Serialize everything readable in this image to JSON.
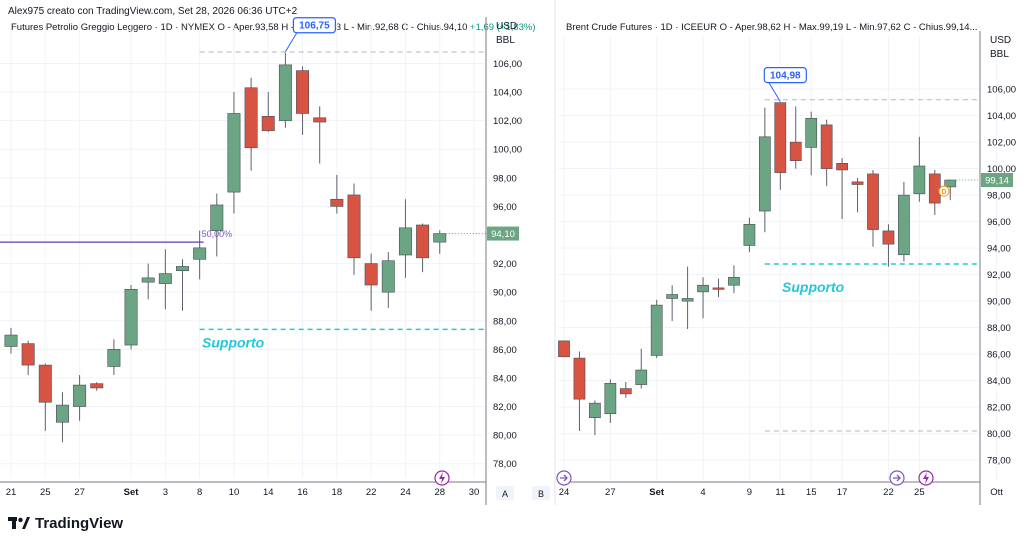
{
  "header": {
    "creator_text": "Alex975 creato con TradingView.com, Set 28, 2026 06:36 UTC+2"
  },
  "footer": {
    "brand": "TradingView",
    "logo_icon": "tradingview-logo-icon"
  },
  "colors": {
    "up": "#6ba583",
    "down": "#d75442",
    "callout": "#2962ff",
    "support": "#26c6da",
    "purple": "#7e57c2",
    "price_label_bg": "#6ba583"
  },
  "charts": [
    {
      "id": "wti",
      "title_prefix": "Futures Petrolio Greggio Leggero · 1D · NYMEX",
      "ohlc_text": "O - Aper.93,58  H - Max.94,33  L - Min.92,68  C - Chius.94,10",
      "change_text": "+1,69 (+1,83%)",
      "currency": "USD",
      "unit": "BBL",
      "y_ticks": [
        "78,00",
        "80,00",
        "82,00",
        "84,00",
        "86,00",
        "88,00",
        "90,00",
        "92,00",
        "94,00",
        "96,00",
        "98,00",
        "100,00",
        "102,00",
        "104,00",
        "106,00"
      ],
      "x_ticks": [
        {
          "label": "21",
          "i": 0
        },
        {
          "label": "25",
          "i": 2
        },
        {
          "label": "27",
          "i": 4
        },
        {
          "label": "Set",
          "i": 7
        },
        {
          "label": "3",
          "i": 9
        },
        {
          "label": "8",
          "i": 11
        },
        {
          "label": "10",
          "i": 13
        },
        {
          "label": "14",
          "i": 15
        },
        {
          "label": "16",
          "i": 17
        },
        {
          "label": "18",
          "i": 19
        },
        {
          "label": "22",
          "i": 21
        },
        {
          "label": "24",
          "i": 23
        },
        {
          "label": "28",
          "i": 25
        },
        {
          "label": "30",
          "i": 27
        }
      ],
      "scale_buttons": [
        "A",
        "B"
      ],
      "high_label": "106,75",
      "fib_label": "50,00%",
      "support_label": "Supporto",
      "last_price": "94,10",
      "chart_data": {
        "type": "candlestick",
        "ylim": [
          77,
          107.5
        ],
        "candles": [
          {
            "o": 86.2,
            "h": 87.5,
            "l": 85.7,
            "c": 87.0
          },
          {
            "o": 86.4,
            "h": 86.6,
            "l": 84.2,
            "c": 84.9
          },
          {
            "o": 84.9,
            "h": 85.0,
            "l": 80.3,
            "c": 82.3
          },
          {
            "o": 80.9,
            "h": 83.0,
            "l": 79.5,
            "c": 82.1
          },
          {
            "o": 82.0,
            "h": 84.2,
            "l": 81.0,
            "c": 83.5
          },
          {
            "o": 83.6,
            "h": 83.7,
            "l": 83.1,
            "c": 83.3
          },
          {
            "o": 84.8,
            "h": 86.7,
            "l": 84.2,
            "c": 86.0
          },
          {
            "o": 86.3,
            "h": 90.5,
            "l": 86.0,
            "c": 90.2
          },
          {
            "o": 90.7,
            "h": 92.0,
            "l": 89.5,
            "c": 91.0
          },
          {
            "o": 90.6,
            "h": 93.0,
            "l": 88.8,
            "c": 91.3
          },
          {
            "o": 91.5,
            "h": 92.3,
            "l": 88.7,
            "c": 91.8
          },
          {
            "o": 92.3,
            "h": 94.3,
            "l": 90.9,
            "c": 93.1
          },
          {
            "o": 94.3,
            "h": 96.9,
            "l": 92.5,
            "c": 96.1
          },
          {
            "o": 97.0,
            "h": 104.0,
            "l": 95.5,
            "c": 102.5
          },
          {
            "o": 104.3,
            "h": 105.0,
            "l": 98.5,
            "c": 100.1
          },
          {
            "o": 102.3,
            "h": 104.0,
            "l": 101.2,
            "c": 101.3
          },
          {
            "o": 102.0,
            "h": 106.75,
            "l": 101.5,
            "c": 105.9
          },
          {
            "o": 105.5,
            "h": 105.8,
            "l": 101.0,
            "c": 102.5
          },
          {
            "o": 102.2,
            "h": 103.0,
            "l": 99.0,
            "c": 101.9
          },
          {
            "o": 96.5,
            "h": 98.2,
            "l": 95.5,
            "c": 96.0
          },
          {
            "o": 96.8,
            "h": 97.6,
            "l": 91.2,
            "c": 92.4
          },
          {
            "o": 92.0,
            "h": 92.7,
            "l": 88.7,
            "c": 90.5
          },
          {
            "o": 90.0,
            "h": 92.8,
            "l": 88.9,
            "c": 92.2
          },
          {
            "o": 92.6,
            "h": 96.5,
            "l": 91.0,
            "c": 94.5
          },
          {
            "o": 94.7,
            "h": 94.8,
            "l": 91.4,
            "c": 92.4
          },
          {
            "o": 93.5,
            "h": 94.33,
            "l": 92.68,
            "c": 94.1
          }
        ],
        "support": 87.4,
        "resistance": 106.8,
        "fib_level": 93.5
      }
    },
    {
      "id": "brent",
      "title_prefix": "Brent Crude Futures · 1D · ICEEUR",
      "ohlc_text": "O - Aper.98,62  H - Max.99,19  L - Min.97,62  C - Chius.99,14...",
      "currency": "USD",
      "unit": "BBL",
      "y_ticks": [
        "78,00",
        "80,00",
        "82,00",
        "84,00",
        "86,00",
        "88,00",
        "90,00",
        "92,00",
        "94,00",
        "96,00",
        "98,00",
        "100,00",
        "102,00",
        "104,00",
        "106,00"
      ],
      "x_ticks": [
        {
          "label": "24",
          "i": 0
        },
        {
          "label": "27",
          "i": 3
        },
        {
          "label": "Set",
          "i": 6
        },
        {
          "label": "4",
          "i": 9
        },
        {
          "label": "9",
          "i": 12
        },
        {
          "label": "11",
          "i": 14
        },
        {
          "label": "15",
          "i": 16
        },
        {
          "label": "17",
          "i": 18
        },
        {
          "label": "22",
          "i": 21
        },
        {
          "label": "25",
          "i": 23
        },
        {
          "label": "Ott",
          "i": 28
        }
      ],
      "high_label": "104,98",
      "support_label": "Supporto",
      "last_price": "99,14",
      "dividend_marker": "D",
      "chart_data": {
        "type": "candlestick",
        "ylim": [
          76.5,
          108.5
        ],
        "candles": [
          {
            "o": 87.0,
            "h": 87.0,
            "l": 85.8,
            "c": 85.8
          },
          {
            "o": 85.7,
            "h": 86.2,
            "l": 80.2,
            "c": 82.6
          },
          {
            "o": 81.2,
            "h": 82.5,
            "l": 79.9,
            "c": 82.3
          },
          {
            "o": 81.5,
            "h": 84.1,
            "l": 80.8,
            "c": 83.8
          },
          {
            "o": 83.4,
            "h": 83.9,
            "l": 82.7,
            "c": 83.0
          },
          {
            "o": 83.7,
            "h": 86.4,
            "l": 83.4,
            "c": 84.8
          },
          {
            "o": 85.9,
            "h": 90.1,
            "l": 85.7,
            "c": 89.7
          },
          {
            "o": 90.2,
            "h": 91.2,
            "l": 88.5,
            "c": 90.5
          },
          {
            "o": 90.0,
            "h": 92.6,
            "l": 87.9,
            "c": 90.2
          },
          {
            "o": 90.7,
            "h": 91.8,
            "l": 88.7,
            "c": 91.2
          },
          {
            "o": 91.0,
            "h": 91.7,
            "l": 90.3,
            "c": 90.9
          },
          {
            "o": 91.2,
            "h": 92.7,
            "l": 90.6,
            "c": 91.8
          },
          {
            "o": 94.2,
            "h": 96.3,
            "l": 93.7,
            "c": 95.8
          },
          {
            "o": 96.8,
            "h": 104.6,
            "l": 95.2,
            "c": 102.4
          },
          {
            "o": 104.98,
            "h": 104.98,
            "l": 98.4,
            "c": 99.7
          },
          {
            "o": 102.0,
            "h": 104.7,
            "l": 100.0,
            "c": 100.6
          },
          {
            "o": 101.6,
            "h": 104.3,
            "l": 99.5,
            "c": 103.8
          },
          {
            "o": 103.3,
            "h": 103.7,
            "l": 98.7,
            "c": 100.0
          },
          {
            "o": 100.4,
            "h": 100.8,
            "l": 96.2,
            "c": 99.9
          },
          {
            "o": 99.0,
            "h": 99.3,
            "l": 96.7,
            "c": 98.8
          },
          {
            "o": 99.6,
            "h": 99.9,
            "l": 94.1,
            "c": 95.4
          },
          {
            "o": 95.3,
            "h": 95.8,
            "l": 92.6,
            "c": 94.3
          },
          {
            "o": 93.5,
            "h": 99.0,
            "l": 93.0,
            "c": 98.0
          },
          {
            "o": 98.1,
            "h": 102.4,
            "l": 97.5,
            "c": 100.2
          },
          {
            "o": 99.6,
            "h": 99.9,
            "l": 96.5,
            "c": 97.4
          },
          {
            "o": 98.62,
            "h": 99.19,
            "l": 97.62,
            "c": 99.14
          }
        ],
        "support": 92.8,
        "resistance": 105.2,
        "lower_line": 80.2
      }
    }
  ]
}
